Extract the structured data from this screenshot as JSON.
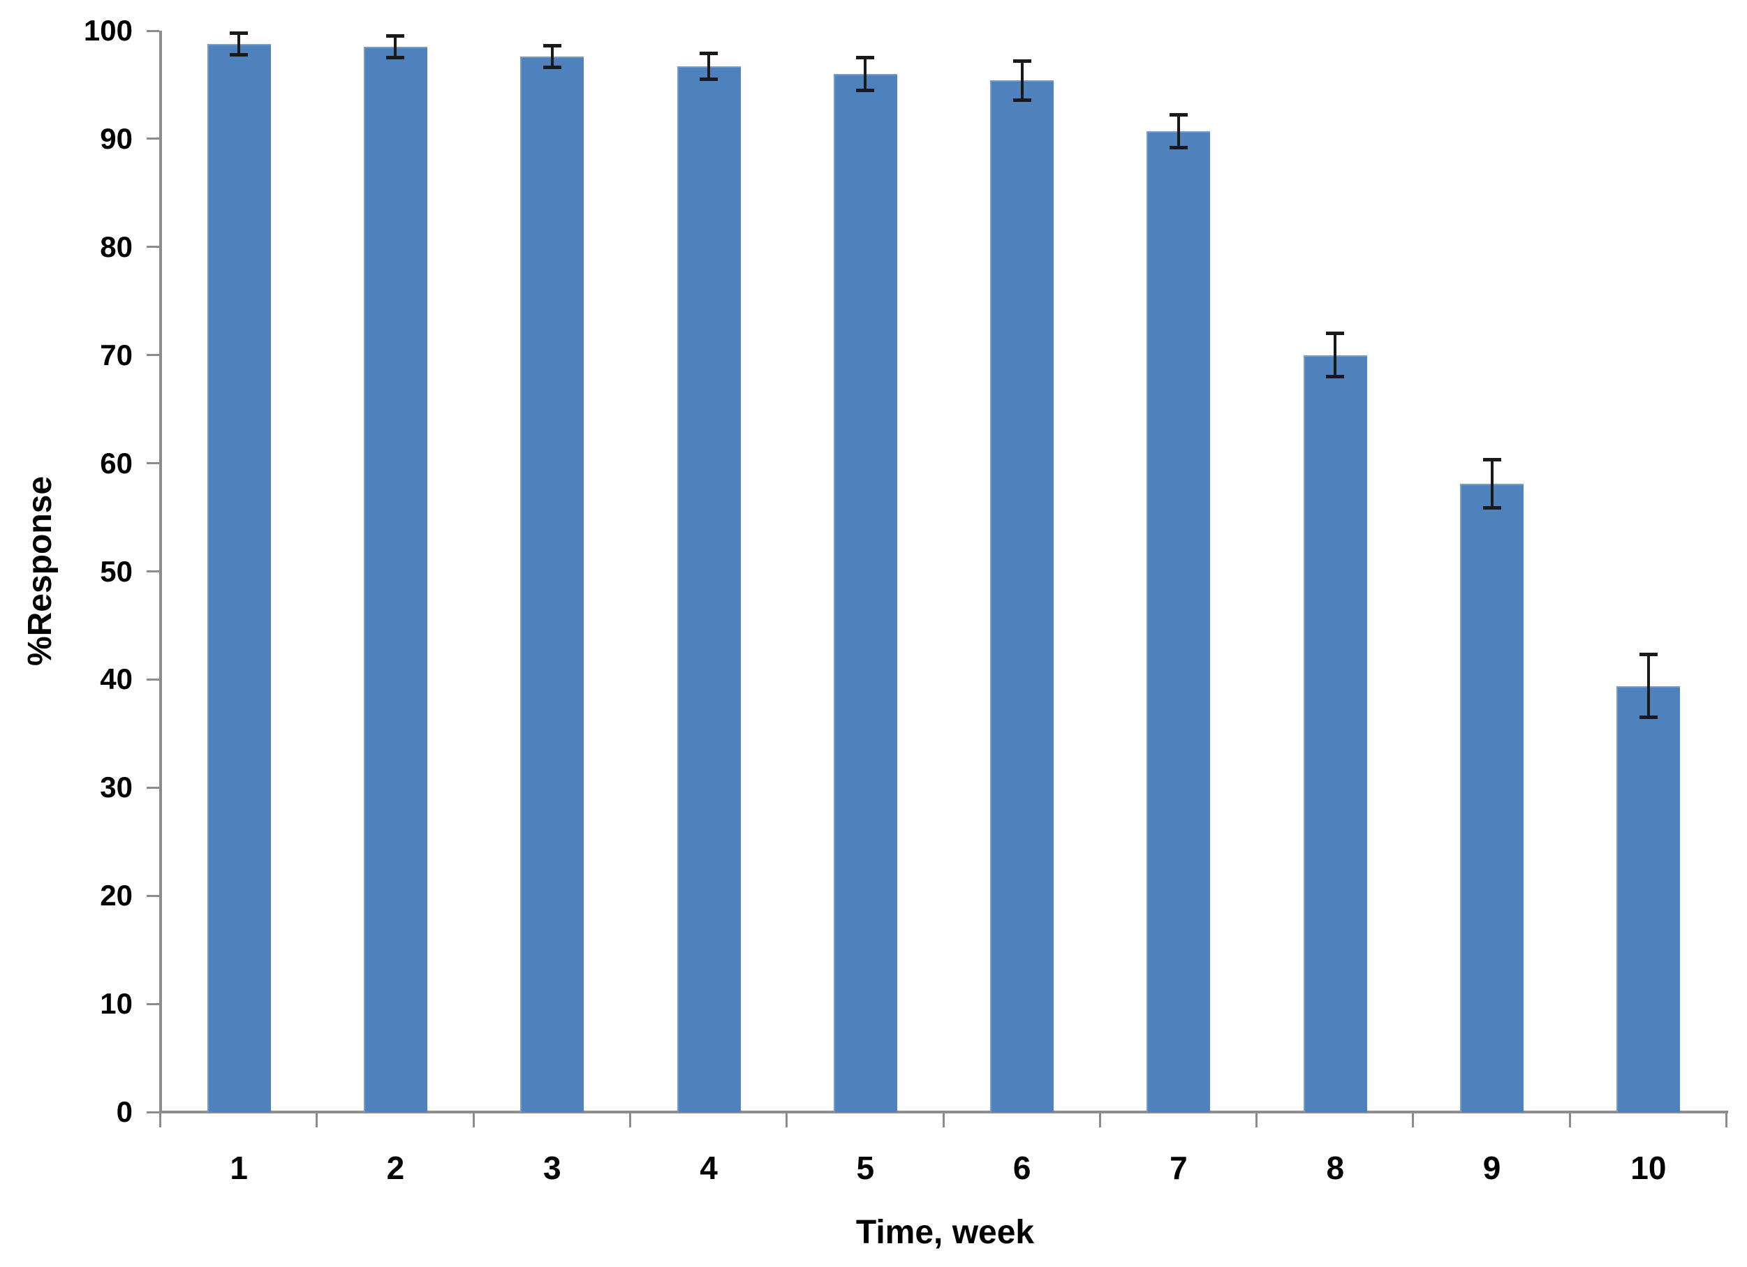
{
  "chart_data": {
    "type": "bar",
    "title": "",
    "xlabel": "Time, week",
    "ylabel": "%Response",
    "categories": [
      "1",
      "2",
      "3",
      "4",
      "5",
      "6",
      "7",
      "8",
      "9",
      "10"
    ],
    "values": [
      98.8,
      98.5,
      97.6,
      96.7,
      96.0,
      95.4,
      90.7,
      70.0,
      58.1,
      39.4
    ],
    "errors": [
      1.0,
      1.0,
      1.0,
      1.2,
      1.5,
      1.8,
      1.5,
      2.0,
      2.2,
      2.9
    ],
    "series": [
      {
        "name": "%Response",
        "values": [
          98.8,
          98.5,
          97.6,
          96.7,
          96.0,
          95.4,
          90.7,
          70.0,
          58.1,
          39.4
        ]
      }
    ],
    "ylim": [
      0,
      100
    ],
    "yticks": [
      0,
      10,
      20,
      30,
      40,
      50,
      60,
      70,
      80,
      90,
      100
    ],
    "grid": "off",
    "legend": "none",
    "error_bars": true,
    "colors": {
      "bar_fill": "#4f81bd",
      "axis": "#8c8c8c",
      "error_bar": "#1a1a1a",
      "text": "#000000",
      "background": "#ffffff"
    }
  }
}
